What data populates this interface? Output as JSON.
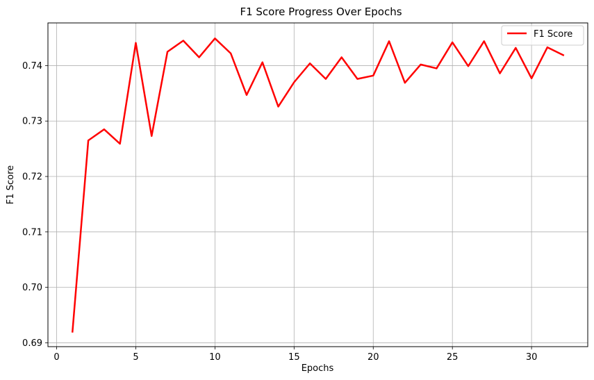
{
  "chart_data": {
    "type": "line",
    "title": "F1 Score Progress Over Epochs",
    "xlabel": "Epochs",
    "ylabel": "F1 Score",
    "xlim": [
      -0.55,
      33.55
    ],
    "ylim": [
      0.6893,
      0.7477
    ],
    "xticks": [
      0,
      5,
      10,
      15,
      20,
      25,
      30
    ],
    "yticks": [
      0.69,
      0.7,
      0.71,
      0.72,
      0.73,
      0.74
    ],
    "xtick_labels": [
      "0",
      "5",
      "10",
      "15",
      "20",
      "25",
      "30"
    ],
    "ytick_labels": [
      "0.69",
      "0.70",
      "0.71",
      "0.72",
      "0.73",
      "0.74"
    ],
    "grid": true,
    "legend_position": "top-right",
    "series": [
      {
        "name": "F1 Score",
        "color": "#ff0000",
        "x": [
          1,
          2,
          3,
          4,
          5,
          6,
          7,
          8,
          9,
          10,
          11,
          12,
          13,
          14,
          15,
          16,
          17,
          18,
          19,
          20,
          21,
          22,
          23,
          24,
          25,
          26,
          27,
          28,
          29,
          30,
          31,
          32
        ],
        "y": [
          0.692,
          0.7265,
          0.7285,
          0.7259,
          0.7441,
          0.7273,
          0.7425,
          0.7445,
          0.7415,
          0.7449,
          0.7422,
          0.7347,
          0.7406,
          0.7326,
          0.737,
          0.7404,
          0.7376,
          0.7415,
          0.7376,
          0.7382,
          0.7444,
          0.7369,
          0.7402,
          0.7395,
          0.7442,
          0.7399,
          0.7444,
          0.7386,
          0.7432,
          0.7377,
          0.7433,
          0.7419
        ]
      }
    ]
  }
}
